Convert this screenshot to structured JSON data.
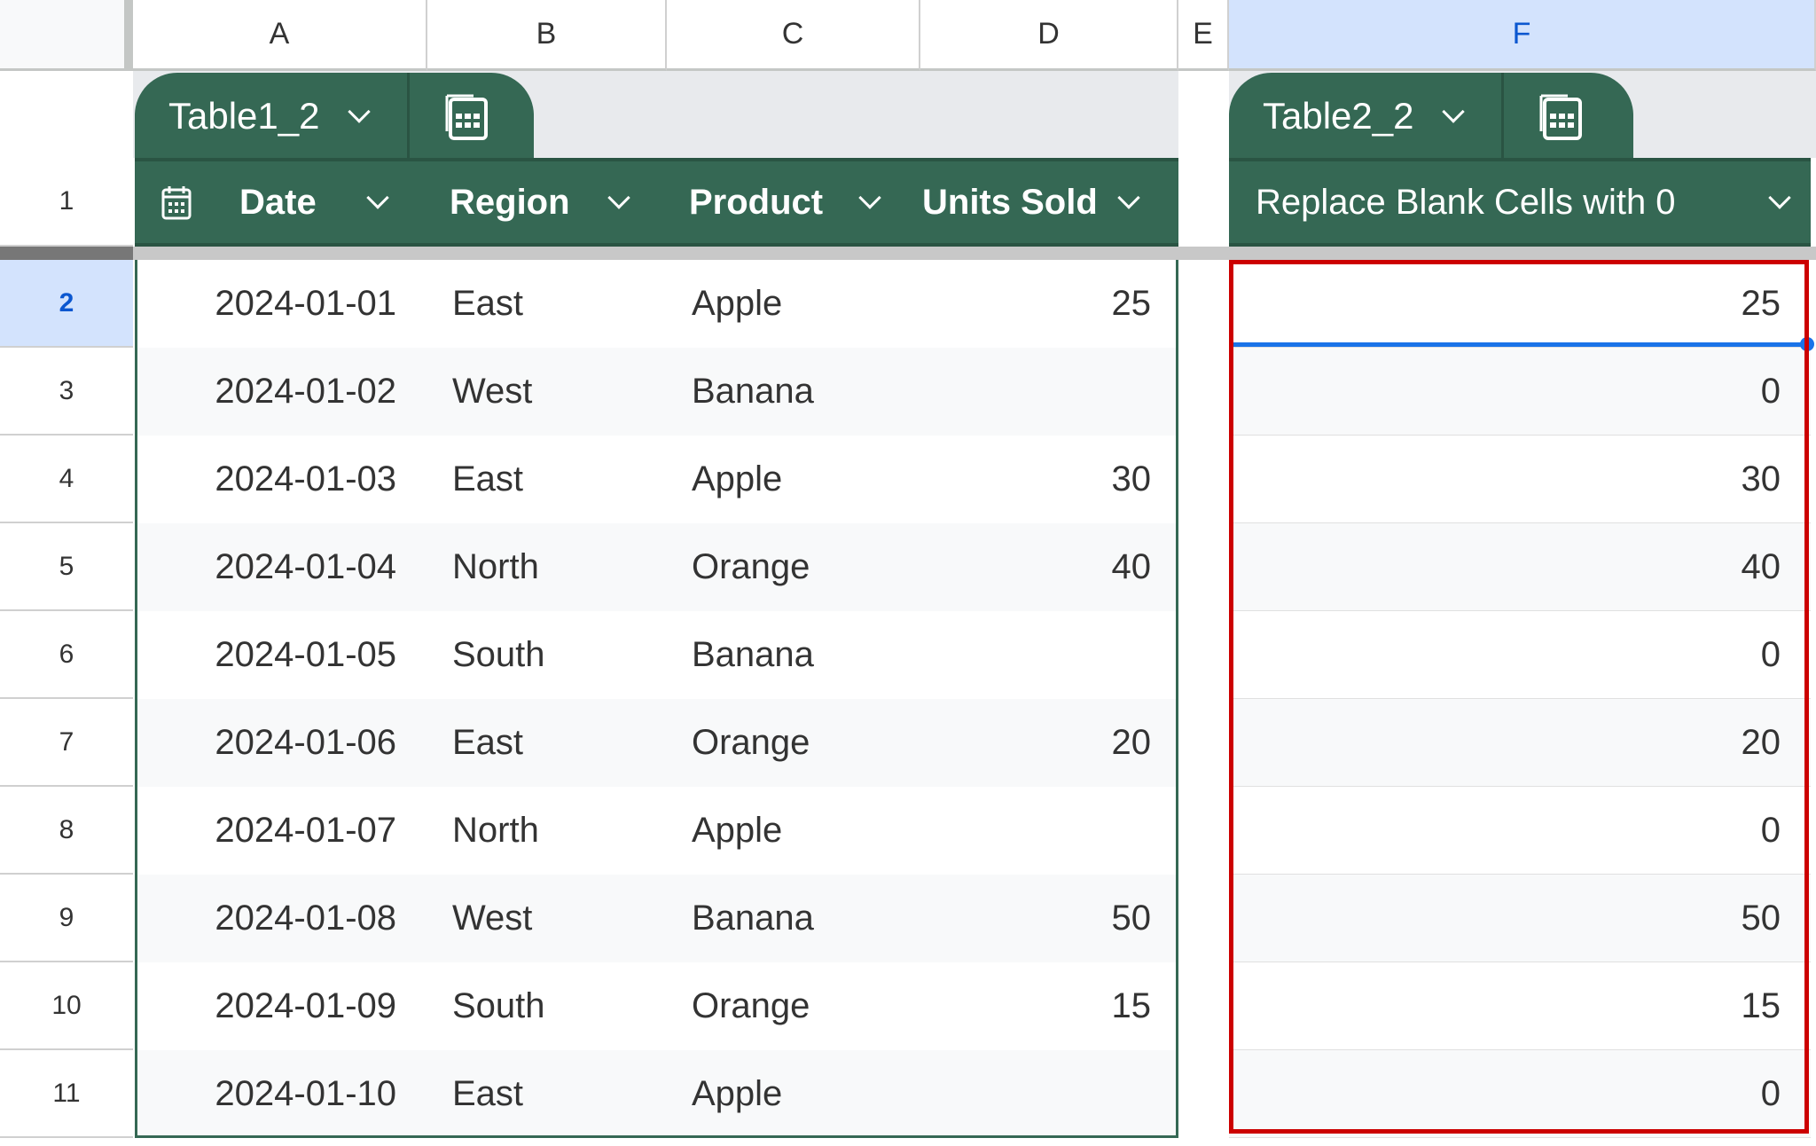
{
  "columns": [
    "A",
    "B",
    "C",
    "D",
    "E",
    "F"
  ],
  "selected_column": "F",
  "table1": {
    "name": "Table1_2",
    "headers": [
      "Date",
      "Region",
      "Product",
      "Units Sold"
    ],
    "rows": [
      [
        "2024-01-01",
        "East",
        "Apple",
        "25"
      ],
      [
        "2024-01-02",
        "West",
        "Banana",
        ""
      ],
      [
        "2024-01-03",
        "East",
        "Apple",
        "30"
      ],
      [
        "2024-01-04",
        "North",
        "Orange",
        "40"
      ],
      [
        "2024-01-05",
        "South",
        "Banana",
        ""
      ],
      [
        "2024-01-06",
        "East",
        "Orange",
        "20"
      ],
      [
        "2024-01-07",
        "North",
        "Apple",
        ""
      ],
      [
        "2024-01-08",
        "West",
        "Banana",
        "50"
      ],
      [
        "2024-01-09",
        "South",
        "Orange",
        "15"
      ],
      [
        "2024-01-10",
        "East",
        "Apple",
        ""
      ]
    ]
  },
  "table2": {
    "name": "Table2_2",
    "header": "Replace Blank Cells with 0",
    "values": [
      "25",
      "0",
      "30",
      "40",
      "0",
      "20",
      "0",
      "50",
      "15",
      "0"
    ]
  },
  "row_numbers": [
    "1",
    "2",
    "3",
    "4",
    "5",
    "6",
    "7",
    "8",
    "9",
    "10",
    "11"
  ],
  "selected_row": "2",
  "colors": {
    "table_header": "#356854",
    "highlight_box": "#cc0000",
    "selection": "#1a73e8",
    "selected_header": "#d3e3fd"
  }
}
